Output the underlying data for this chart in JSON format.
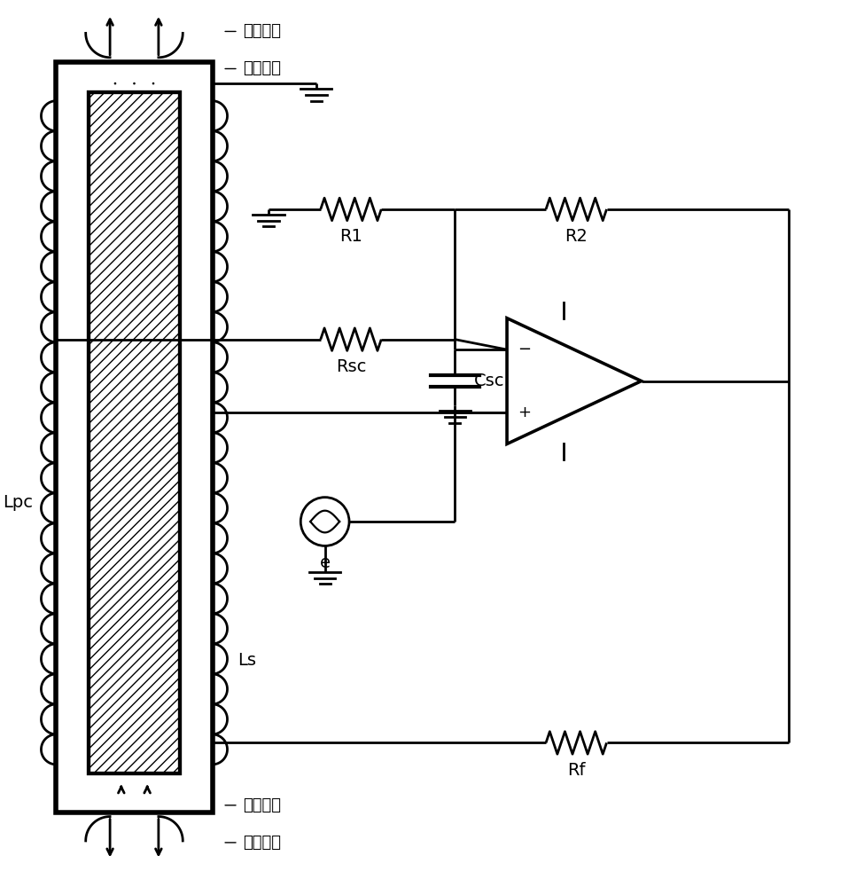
{
  "bg_color": "#ffffff",
  "line_color": "#000000",
  "lw": 2.0,
  "lw_thick": 4.0,
  "labels": {
    "outer_field_top": "外部磁场",
    "feedback_top": "反馈磁场",
    "outer_field_bot": "外部磁场",
    "feedback_bot": "反馈磁场",
    "R1": "R1",
    "R2": "R2",
    "Rsc": "Rsc",
    "Csc": "Csc",
    "e": "e",
    "Rf": "Rf",
    "Lpc": "Lpc",
    "Ls": "Ls",
    "minus": "−",
    "plus": "+"
  },
  "fontsize": 14
}
